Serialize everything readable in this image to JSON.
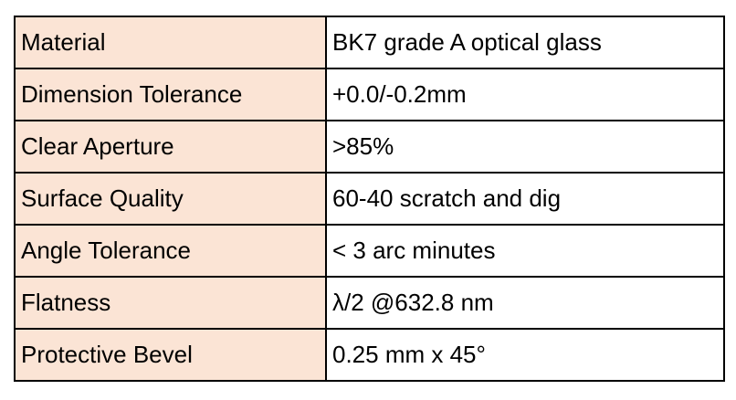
{
  "colors": {
    "key_background": "#fbe4d5",
    "value_background": "#ffffff",
    "border": "#000000"
  },
  "specs": [
    {
      "label": "Material",
      "value": "BK7 grade A optical glass"
    },
    {
      "label": "Dimension Tolerance",
      "value": "+0.0/-0.2mm"
    },
    {
      "label": "Clear Aperture",
      "value": ">85%"
    },
    {
      "label": "Surface Quality",
      "value": "60-40 scratch and dig"
    },
    {
      "label": "Angle Tolerance",
      "value": "< 3 arc minutes"
    },
    {
      "label": "Flatness",
      "value": "λ/2 @632.8 nm"
    },
    {
      "label": "Protective Bevel",
      "value": "0.25 mm x 45°"
    }
  ]
}
